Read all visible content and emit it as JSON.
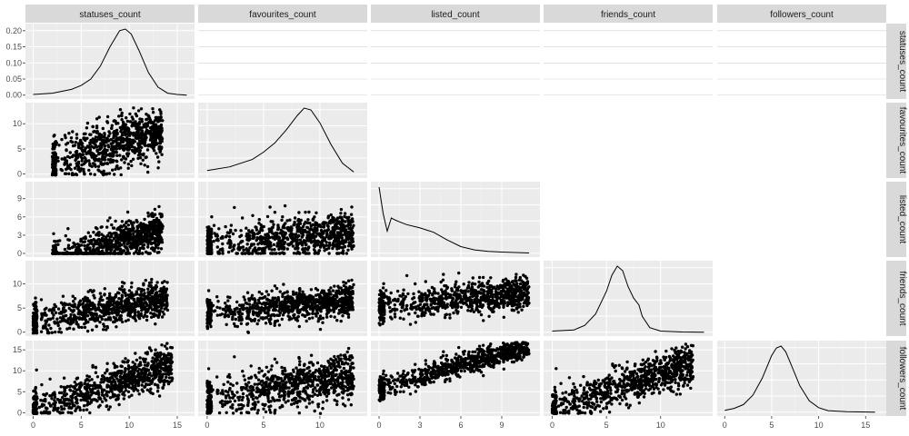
{
  "chart_data": {
    "type": "scatter",
    "variables": [
      "statuses_count",
      "favourites_count",
      "listed_count",
      "friends_count",
      "followers_count"
    ],
    "panel_background": "#ebebeb",
    "strip_background": "#d9d9d9",
    "point_color": "#000000",
    "grid": true,
    "axes": {
      "statuses_count": {
        "range": [
          -0.8,
          16.8
        ],
        "ticks": [
          0,
          5,
          10,
          15
        ]
      },
      "favourites_count": {
        "range": [
          -0.8,
          14.2
        ],
        "ticks": [
          0,
          5,
          10
        ]
      },
      "listed_count": {
        "range": [
          -0.6,
          11.8
        ],
        "ticks": [
          0,
          3,
          6,
          9
        ]
      },
      "friends_count": {
        "range": [
          -0.8,
          14.8
        ],
        "ticks": [
          0,
          5,
          10
        ]
      },
      "followers_count": {
        "range": [
          -0.8,
          17.2
        ],
        "ticks": [
          0,
          5,
          10,
          15
        ]
      }
    },
    "density_axis": {
      "range": [
        -0.012,
        0.222
      ],
      "ticks": [
        "0.00",
        "0.05",
        "0.10",
        "0.15",
        "0.20"
      ]
    },
    "densities": [
      {
        "variable": "statuses_count",
        "x": [
          0,
          2,
          4,
          5,
          6,
          7,
          8,
          9,
          9.6,
          10.2,
          11,
          12,
          13,
          14,
          15,
          16
        ],
        "y": [
          0.002,
          0.006,
          0.018,
          0.03,
          0.05,
          0.09,
          0.15,
          0.2,
          0.205,
          0.19,
          0.14,
          0.07,
          0.025,
          0.006,
          0.002,
          0
        ]
      },
      {
        "variable": "favourites_count",
        "x": [
          0,
          2,
          4,
          5,
          6,
          7,
          8,
          8.6,
          9.2,
          10,
          11,
          12,
          13
        ],
        "y": [
          0.01,
          0.02,
          0.04,
          0.06,
          0.085,
          0.12,
          0.16,
          0.18,
          0.175,
          0.14,
          0.08,
          0.03,
          0.006
        ]
      },
      {
        "variable": "listed_count",
        "x": [
          0,
          0.3,
          0.6,
          0.9,
          1.2,
          1.6,
          2,
          3,
          4,
          5,
          6,
          7,
          8,
          9,
          10,
          11
        ],
        "y": [
          0.3,
          0.18,
          0.1,
          0.16,
          0.15,
          0.14,
          0.13,
          0.115,
          0.095,
          0.06,
          0.03,
          0.015,
          0.008,
          0.005,
          0.003,
          0.001
        ]
      },
      {
        "variable": "friends_count",
        "x": [
          0,
          2,
          3,
          4,
          5,
          5.5,
          6,
          6.5,
          7,
          7.5,
          8,
          8.3,
          9,
          10,
          12,
          14
        ],
        "y": [
          0.005,
          0.01,
          0.03,
          0.08,
          0.18,
          0.25,
          0.29,
          0.27,
          0.2,
          0.15,
          0.12,
          0.07,
          0.02,
          0.005,
          0.001,
          0
        ]
      },
      {
        "variable": "followers_count",
        "x": [
          0,
          1,
          2,
          3,
          4,
          5,
          5.5,
          6,
          6.5,
          7,
          8,
          9,
          10,
          11,
          13,
          16
        ],
        "y": [
          0.005,
          0.01,
          0.02,
          0.045,
          0.09,
          0.15,
          0.17,
          0.175,
          0.16,
          0.13,
          0.07,
          0.03,
          0.012,
          0.004,
          0.001,
          0
        ]
      }
    ],
    "scatter_panels": [
      {
        "x": "statuses_count",
        "y": "favourites_count",
        "x_center": [
          2,
          13.5
        ],
        "slope": 0.55,
        "intercept": 1.2,
        "spread": 2.6
      },
      {
        "x": "statuses_count",
        "y": "listed_count",
        "x_center": [
          2,
          13.5
        ],
        "slope": 0.45,
        "intercept": -2.3,
        "spread": 1.6
      },
      {
        "x": "favourites_count",
        "y": "listed_count",
        "x_center": [
          0,
          13
        ],
        "slope": 0.15,
        "intercept": 1.5,
        "spread": 1.6
      },
      {
        "x": "statuses_count",
        "y": "friends_count",
        "x_center": [
          0,
          14
        ],
        "slope": 0.35,
        "intercept": 2.2,
        "spread": 1.7
      },
      {
        "x": "favourites_count",
        "y": "friends_count",
        "x_center": [
          0,
          13
        ],
        "slope": 0.2,
        "intercept": 4.0,
        "spread": 1.6
      },
      {
        "x": "listed_count",
        "y": "friends_count",
        "x_center": [
          0,
          11
        ],
        "slope": 0.25,
        "intercept": 5.5,
        "spread": 1.6
      },
      {
        "x": "statuses_count",
        "y": "followers_count",
        "x_center": [
          0,
          14.5
        ],
        "slope": 0.75,
        "intercept": 0.5,
        "spread": 2.2
      },
      {
        "x": "favourites_count",
        "y": "followers_count",
        "x_center": [
          0,
          13
        ],
        "slope": 0.45,
        "intercept": 3.0,
        "spread": 2.6
      },
      {
        "x": "listed_count",
        "y": "followers_count",
        "x_center": [
          0,
          11
        ],
        "slope": 0.9,
        "intercept": 6.0,
        "spread": 1.3
      },
      {
        "x": "friends_count",
        "y": "followers_count",
        "x_center": [
          0,
          13
        ],
        "slope": 0.85,
        "intercept": 0.8,
        "spread": 2.2
      }
    ]
  }
}
